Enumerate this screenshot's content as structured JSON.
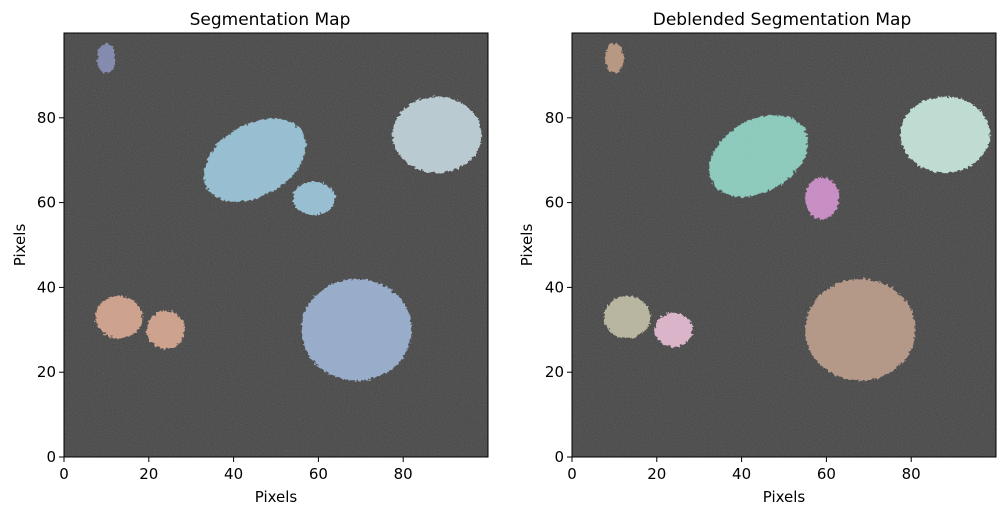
{
  "chart_data": [
    {
      "type": "heatmap",
      "title": "Segmentation Map",
      "xlabel": "Pixels",
      "ylabel": "Pixels",
      "xlim": [
        0,
        100
      ],
      "ylim": [
        0,
        100
      ],
      "xticks": [
        0,
        20,
        40,
        60,
        80
      ],
      "yticks": [
        0,
        20,
        40,
        60,
        80
      ],
      "grid": false,
      "background": "#454545",
      "segments": [
        {
          "cx": 10,
          "cy": 94,
          "rx": 2.2,
          "ry": 3.5,
          "angle": 0,
          "color": "#8f96c0"
        },
        {
          "cx": 45,
          "cy": 70,
          "rx": 13,
          "ry": 8.5,
          "angle": -30,
          "color": "#a5d3e8"
        },
        {
          "cx": 59,
          "cy": 61,
          "rx": 5,
          "ry": 4,
          "angle": 0,
          "color": "#a5d3e8"
        },
        {
          "cx": 88,
          "cy": 76,
          "rx": 10.5,
          "ry": 9,
          "angle": 0,
          "color": "#cde0e8"
        },
        {
          "cx": 13,
          "cy": 33,
          "rx": 5.5,
          "ry": 5,
          "angle": 0,
          "color": "#e3b199"
        },
        {
          "cx": 24,
          "cy": 30,
          "rx": 4.5,
          "ry": 4.5,
          "angle": 0,
          "color": "#e3b199"
        },
        {
          "cx": 69,
          "cy": 30,
          "rx": 13,
          "ry": 12,
          "angle": 0,
          "color": "#a6bee0"
        }
      ]
    },
    {
      "type": "heatmap",
      "title": "Deblended Segmentation Map",
      "xlabel": "Pixels",
      "ylabel": "Pixels",
      "xlim": [
        0,
        100
      ],
      "ylim": [
        0,
        100
      ],
      "xticks": [
        0,
        20,
        40,
        60,
        80
      ],
      "yticks": [
        0,
        20,
        40,
        60,
        80
      ],
      "grid": false,
      "background": "#454545",
      "segments": [
        {
          "cx": 10,
          "cy": 94,
          "rx": 2.2,
          "ry": 3.5,
          "angle": 0,
          "color": "#c9a58c"
        },
        {
          "cx": 44,
          "cy": 71,
          "rx": 12.5,
          "ry": 8.5,
          "angle": -30,
          "color": "#99e0d0"
        },
        {
          "cx": 59,
          "cy": 61,
          "rx": 4,
          "ry": 5,
          "angle": 0,
          "color": "#dd9ad8"
        },
        {
          "cx": 88,
          "cy": 76,
          "rx": 10.5,
          "ry": 9,
          "angle": 0,
          "color": "#d3f5ea"
        },
        {
          "cx": 13,
          "cy": 33,
          "rx": 5.5,
          "ry": 5,
          "angle": 0,
          "color": "#cbc8ae"
        },
        {
          "cx": 24,
          "cy": 30,
          "rx": 4.5,
          "ry": 4,
          "angle": 0,
          "color": "#f3c6de"
        },
        {
          "cx": 68,
          "cy": 30,
          "rx": 13,
          "ry": 12,
          "angle": 0,
          "color": "#c6a592"
        }
      ]
    }
  ]
}
